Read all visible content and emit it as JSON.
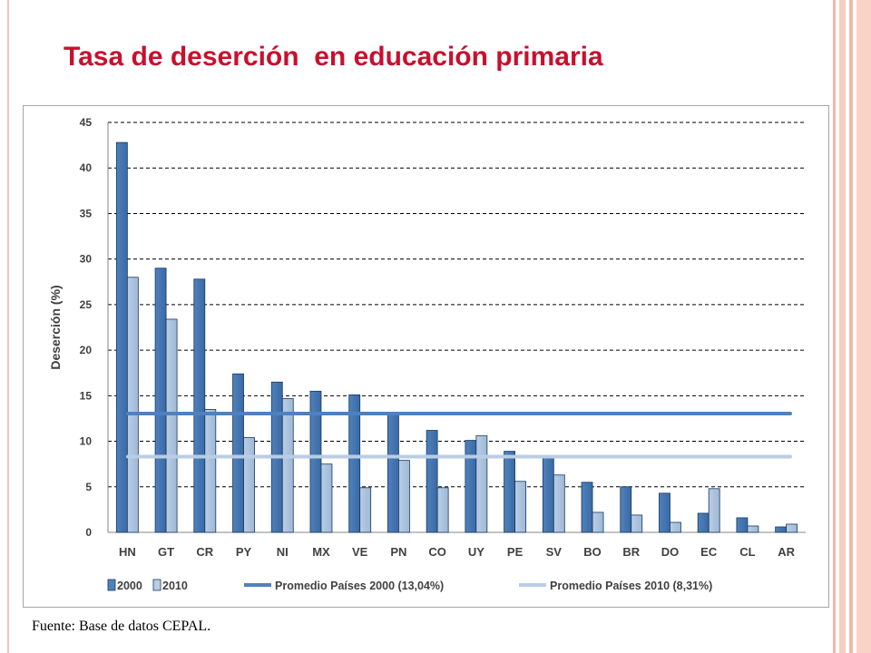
{
  "slide": {
    "title": "Tasa de deserción  en educación primaria",
    "source": "Fuente: Base de datos CEPAL.",
    "frame_color": "#f4c4b3",
    "title_color": "#c8102e"
  },
  "chart_data": {
    "type": "bar",
    "ylabel": "Deserción (%)",
    "xlabel": "",
    "ylim": [
      0,
      45
    ],
    "yticks": [
      0,
      5,
      10,
      15,
      20,
      25,
      30,
      35,
      40,
      45
    ],
    "grid": true,
    "legend_position": "bottom",
    "categories": [
      "HN",
      "GT",
      "CR",
      "PY",
      "NI",
      "MX",
      "VE",
      "PN",
      "CO",
      "UY",
      "PE",
      "SV",
      "BO",
      "BR",
      "DO",
      "EC",
      "CL",
      "AR"
    ],
    "series": [
      {
        "name": "2000",
        "color": "#4f81bd",
        "values": [
          42.8,
          29.0,
          27.8,
          17.4,
          16.5,
          15.5,
          15.1,
          13.0,
          11.2,
          10.1,
          8.9,
          8.2,
          5.5,
          5.0,
          4.3,
          2.1,
          1.6,
          0.6
        ]
      },
      {
        "name": "2010",
        "color": "#b9cde5",
        "values": [
          28.0,
          23.4,
          13.5,
          10.4,
          14.7,
          7.5,
          4.9,
          7.9,
          4.9,
          10.6,
          5.6,
          6.3,
          2.2,
          1.9,
          1.1,
          4.8,
          0.7,
          0.9
        ]
      }
    ],
    "reference_lines": [
      {
        "name": "Promedio Países 2000 (13,04%)",
        "value": 13.04,
        "color": "#4f81bd"
      },
      {
        "name": "Promedio Países 2010 (8,31%)",
        "value": 8.31,
        "color": "#b9cde5"
      }
    ]
  }
}
